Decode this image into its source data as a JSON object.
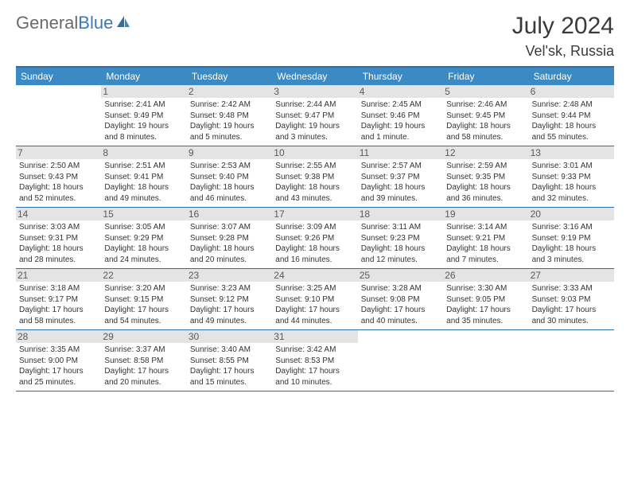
{
  "logo": {
    "part1": "General",
    "part2": "Blue"
  },
  "title": "July 2024",
  "location": "Vel'sk, Russia",
  "colors": {
    "header_bg": "#3b8ac4",
    "header_border": "#2d6da8",
    "row_border": "#2d6da8",
    "daynum_bg": "#e4e4e4",
    "text": "#333333",
    "logo_gray": "#6a6a6a",
    "logo_blue": "#3a7ab8"
  },
  "dayheads": [
    "Sunday",
    "Monday",
    "Tuesday",
    "Wednesday",
    "Thursday",
    "Friday",
    "Saturday"
  ],
  "weeks": [
    [
      {
        "n": "",
        "empty": true
      },
      {
        "n": "1",
        "sr": "Sunrise: 2:41 AM",
        "ss": "Sunset: 9:49 PM",
        "d1": "Daylight: 19 hours",
        "d2": "and 8 minutes."
      },
      {
        "n": "2",
        "sr": "Sunrise: 2:42 AM",
        "ss": "Sunset: 9:48 PM",
        "d1": "Daylight: 19 hours",
        "d2": "and 5 minutes."
      },
      {
        "n": "3",
        "sr": "Sunrise: 2:44 AM",
        "ss": "Sunset: 9:47 PM",
        "d1": "Daylight: 19 hours",
        "d2": "and 3 minutes."
      },
      {
        "n": "4",
        "sr": "Sunrise: 2:45 AM",
        "ss": "Sunset: 9:46 PM",
        "d1": "Daylight: 19 hours",
        "d2": "and 1 minute."
      },
      {
        "n": "5",
        "sr": "Sunrise: 2:46 AM",
        "ss": "Sunset: 9:45 PM",
        "d1": "Daylight: 18 hours",
        "d2": "and 58 minutes."
      },
      {
        "n": "6",
        "sr": "Sunrise: 2:48 AM",
        "ss": "Sunset: 9:44 PM",
        "d1": "Daylight: 18 hours",
        "d2": "and 55 minutes."
      }
    ],
    [
      {
        "n": "7",
        "sr": "Sunrise: 2:50 AM",
        "ss": "Sunset: 9:43 PM",
        "d1": "Daylight: 18 hours",
        "d2": "and 52 minutes."
      },
      {
        "n": "8",
        "sr": "Sunrise: 2:51 AM",
        "ss": "Sunset: 9:41 PM",
        "d1": "Daylight: 18 hours",
        "d2": "and 49 minutes."
      },
      {
        "n": "9",
        "sr": "Sunrise: 2:53 AM",
        "ss": "Sunset: 9:40 PM",
        "d1": "Daylight: 18 hours",
        "d2": "and 46 minutes."
      },
      {
        "n": "10",
        "sr": "Sunrise: 2:55 AM",
        "ss": "Sunset: 9:38 PM",
        "d1": "Daylight: 18 hours",
        "d2": "and 43 minutes."
      },
      {
        "n": "11",
        "sr": "Sunrise: 2:57 AM",
        "ss": "Sunset: 9:37 PM",
        "d1": "Daylight: 18 hours",
        "d2": "and 39 minutes."
      },
      {
        "n": "12",
        "sr": "Sunrise: 2:59 AM",
        "ss": "Sunset: 9:35 PM",
        "d1": "Daylight: 18 hours",
        "d2": "and 36 minutes."
      },
      {
        "n": "13",
        "sr": "Sunrise: 3:01 AM",
        "ss": "Sunset: 9:33 PM",
        "d1": "Daylight: 18 hours",
        "d2": "and 32 minutes."
      }
    ],
    [
      {
        "n": "14",
        "sr": "Sunrise: 3:03 AM",
        "ss": "Sunset: 9:31 PM",
        "d1": "Daylight: 18 hours",
        "d2": "and 28 minutes."
      },
      {
        "n": "15",
        "sr": "Sunrise: 3:05 AM",
        "ss": "Sunset: 9:29 PM",
        "d1": "Daylight: 18 hours",
        "d2": "and 24 minutes."
      },
      {
        "n": "16",
        "sr": "Sunrise: 3:07 AM",
        "ss": "Sunset: 9:28 PM",
        "d1": "Daylight: 18 hours",
        "d2": "and 20 minutes."
      },
      {
        "n": "17",
        "sr": "Sunrise: 3:09 AM",
        "ss": "Sunset: 9:26 PM",
        "d1": "Daylight: 18 hours",
        "d2": "and 16 minutes."
      },
      {
        "n": "18",
        "sr": "Sunrise: 3:11 AM",
        "ss": "Sunset: 9:23 PM",
        "d1": "Daylight: 18 hours",
        "d2": "and 12 minutes."
      },
      {
        "n": "19",
        "sr": "Sunrise: 3:14 AM",
        "ss": "Sunset: 9:21 PM",
        "d1": "Daylight: 18 hours",
        "d2": "and 7 minutes."
      },
      {
        "n": "20",
        "sr": "Sunrise: 3:16 AM",
        "ss": "Sunset: 9:19 PM",
        "d1": "Daylight: 18 hours",
        "d2": "and 3 minutes."
      }
    ],
    [
      {
        "n": "21",
        "sr": "Sunrise: 3:18 AM",
        "ss": "Sunset: 9:17 PM",
        "d1": "Daylight: 17 hours",
        "d2": "and 58 minutes."
      },
      {
        "n": "22",
        "sr": "Sunrise: 3:20 AM",
        "ss": "Sunset: 9:15 PM",
        "d1": "Daylight: 17 hours",
        "d2": "and 54 minutes."
      },
      {
        "n": "23",
        "sr": "Sunrise: 3:23 AM",
        "ss": "Sunset: 9:12 PM",
        "d1": "Daylight: 17 hours",
        "d2": "and 49 minutes."
      },
      {
        "n": "24",
        "sr": "Sunrise: 3:25 AM",
        "ss": "Sunset: 9:10 PM",
        "d1": "Daylight: 17 hours",
        "d2": "and 44 minutes."
      },
      {
        "n": "25",
        "sr": "Sunrise: 3:28 AM",
        "ss": "Sunset: 9:08 PM",
        "d1": "Daylight: 17 hours",
        "d2": "and 40 minutes."
      },
      {
        "n": "26",
        "sr": "Sunrise: 3:30 AM",
        "ss": "Sunset: 9:05 PM",
        "d1": "Daylight: 17 hours",
        "d2": "and 35 minutes."
      },
      {
        "n": "27",
        "sr": "Sunrise: 3:33 AM",
        "ss": "Sunset: 9:03 PM",
        "d1": "Daylight: 17 hours",
        "d2": "and 30 minutes."
      }
    ],
    [
      {
        "n": "28",
        "sr": "Sunrise: 3:35 AM",
        "ss": "Sunset: 9:00 PM",
        "d1": "Daylight: 17 hours",
        "d2": "and 25 minutes."
      },
      {
        "n": "29",
        "sr": "Sunrise: 3:37 AM",
        "ss": "Sunset: 8:58 PM",
        "d1": "Daylight: 17 hours",
        "d2": "and 20 minutes."
      },
      {
        "n": "30",
        "sr": "Sunrise: 3:40 AM",
        "ss": "Sunset: 8:55 PM",
        "d1": "Daylight: 17 hours",
        "d2": "and 15 minutes."
      },
      {
        "n": "31",
        "sr": "Sunrise: 3:42 AM",
        "ss": "Sunset: 8:53 PM",
        "d1": "Daylight: 17 hours",
        "d2": "and 10 minutes."
      },
      {
        "n": "",
        "empty": true
      },
      {
        "n": "",
        "empty": true
      },
      {
        "n": "",
        "empty": true
      }
    ]
  ]
}
